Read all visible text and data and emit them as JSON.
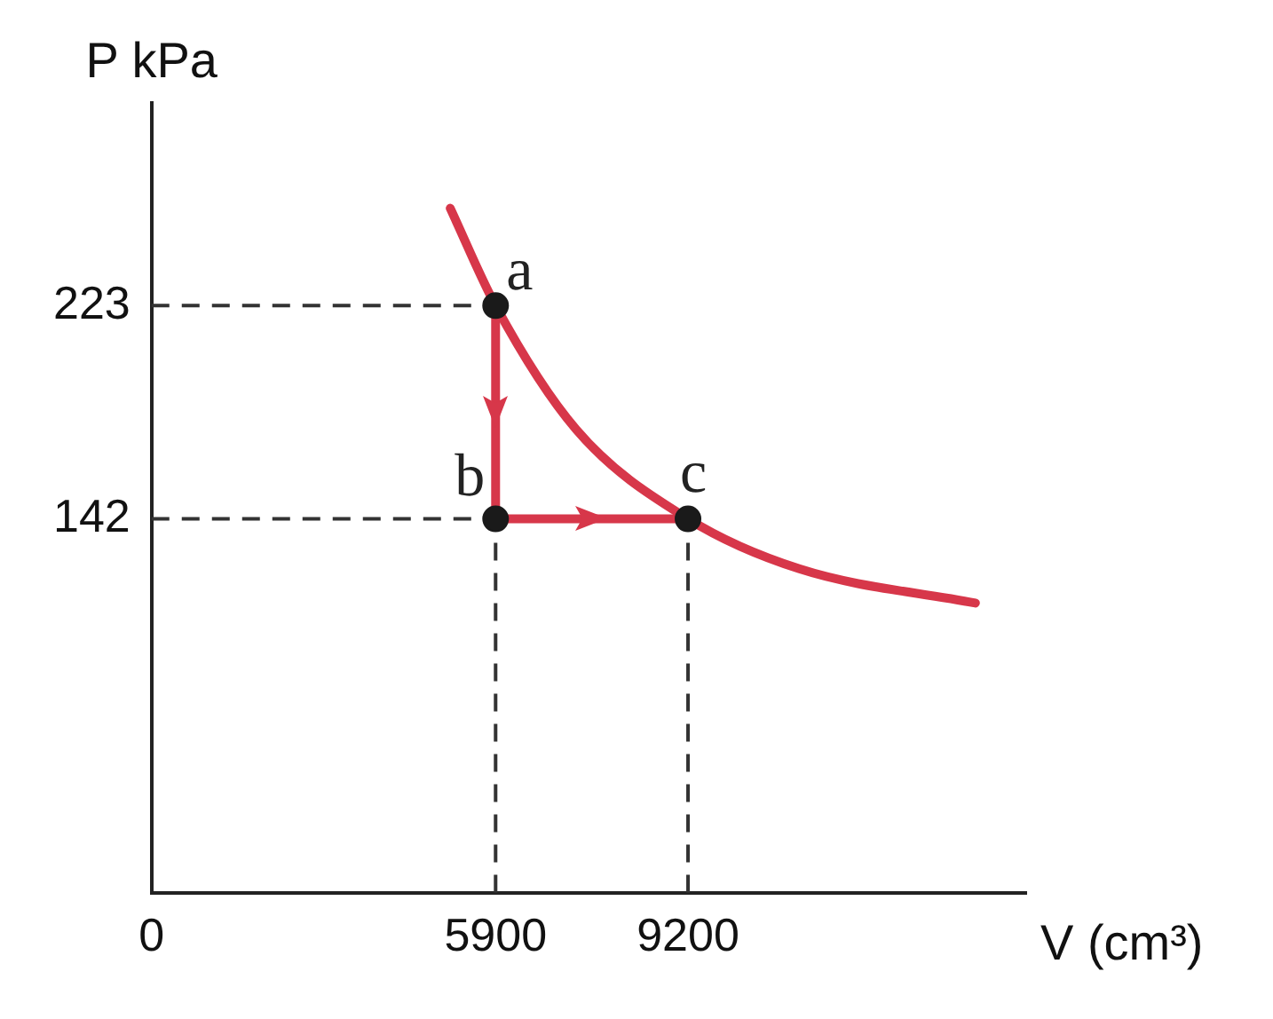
{
  "chart_data": {
    "type": "line",
    "xlabel": "V (cm³)",
    "ylabel": "P kPa",
    "xlim": [
      0,
      15000
    ],
    "ylim": [
      0,
      300
    ],
    "xticks": [
      0,
      5900,
      9200
    ],
    "yticks": [
      223,
      142
    ],
    "grid": false,
    "legend": false,
    "marker": "none",
    "line_style": "solid",
    "series": [
      {
        "type": "line",
        "color": "#d7374a",
        "x": [
          5122,
          5900,
          7281,
          9200,
          11108,
          14129
        ],
        "values": [
          260,
          223,
          176,
          142,
          123,
          110
        ]
      },
      {
        "type": "line",
        "color": "#d7374a",
        "x": [
          5900,
          5900,
          9200
        ],
        "values": [
          223,
          142,
          142
        ]
      },
      {
        "type": "scatter",
        "color": "#1a1a1a",
        "marker": "circle",
        "x": [
          5900,
          5900,
          9200
        ],
        "values": [
          223,
          142,
          142
        ],
        "value_labels": [
          "a",
          "b",
          "c"
        ]
      }
    ],
    "ref_lines": [
      {
        "axis": "y",
        "value": 223,
        "color": "#333333",
        "line_style": "dashed"
      },
      {
        "axis": "y",
        "value": 142,
        "color": "#333333",
        "line_style": "dashed"
      },
      {
        "axis": "x",
        "value": 5900,
        "color": "#333333",
        "line_style": "dashed"
      },
      {
        "axis": "x",
        "value": 9200,
        "color": "#333333",
        "line_style": "dashed"
      }
    ]
  }
}
